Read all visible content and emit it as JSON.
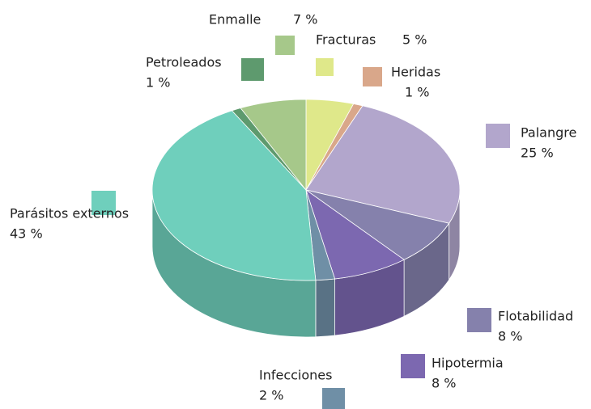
{
  "chart_data": {
    "type": "pie",
    "categories": [
      "Fracturas",
      "Heridas",
      "Palangre",
      "Flotabilidad",
      "Hipotermia",
      "Infecciones",
      "Parásitos externos",
      "Petroleados",
      "Enmalle"
    ],
    "values": [
      5,
      1,
      25,
      8,
      8,
      2,
      43,
      1,
      7
    ],
    "value_labels": [
      "5 %",
      "1 %",
      "25 %",
      "8 %",
      "8 %",
      "2 %",
      "43 %",
      "1 %",
      "7 %"
    ],
    "colors": [
      "#dfe88a",
      "#d9a78a",
      "#b2a6cc",
      "#8581ac",
      "#7c68b0",
      "#6f8fa6",
      "#6fcfbc",
      "#5e9a6e",
      "#a6c88a"
    ]
  }
}
